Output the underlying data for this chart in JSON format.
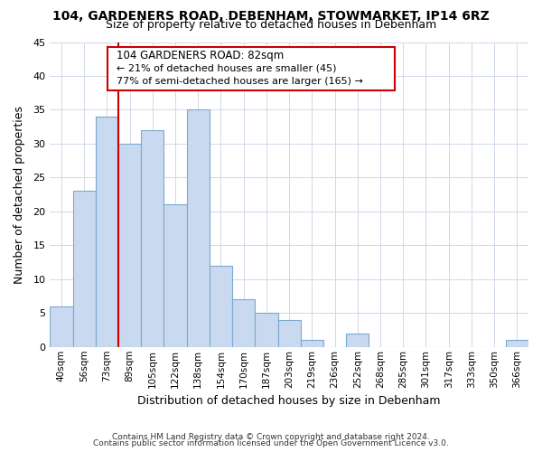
{
  "title": "104, GARDENERS ROAD, DEBENHAM, STOWMARKET, IP14 6RZ",
  "subtitle": "Size of property relative to detached houses in Debenham",
  "xlabel": "Distribution of detached houses by size in Debenham",
  "ylabel": "Number of detached properties",
  "bar_labels": [
    "40sqm",
    "56sqm",
    "73sqm",
    "89sqm",
    "105sqm",
    "122sqm",
    "138sqm",
    "154sqm",
    "170sqm",
    "187sqm",
    "203sqm",
    "219sqm",
    "236sqm",
    "252sqm",
    "268sqm",
    "285sqm",
    "301sqm",
    "317sqm",
    "333sqm",
    "350sqm",
    "366sqm"
  ],
  "bar_values": [
    6,
    23,
    34,
    30,
    32,
    21,
    35,
    12,
    7,
    5,
    4,
    1,
    0,
    2,
    0,
    0,
    0,
    0,
    0,
    0,
    1
  ],
  "bar_color": "#c9d9ef",
  "bar_edge_color": "#7aaad0",
  "ylim": [
    0,
    45
  ],
  "yticks": [
    0,
    5,
    10,
    15,
    20,
    25,
    30,
    35,
    40,
    45
  ],
  "property_line_x": 2.5,
  "annotation_title": "104 GARDENERS ROAD: 82sqm",
  "annotation_line1": "← 21% of detached houses are smaller (45)",
  "annotation_line2": "77% of semi-detached houses are larger (165) →",
  "annotation_box_color": "#ffffff",
  "annotation_border_color": "#cc0000",
  "property_line_color": "#cc0000",
  "footer1": "Contains HM Land Registry data © Crown copyright and database right 2024.",
  "footer2": "Contains public sector information licensed under the Open Government Licence v3.0.",
  "background_color": "#ffffff",
  "grid_color": "#d0d8e8"
}
